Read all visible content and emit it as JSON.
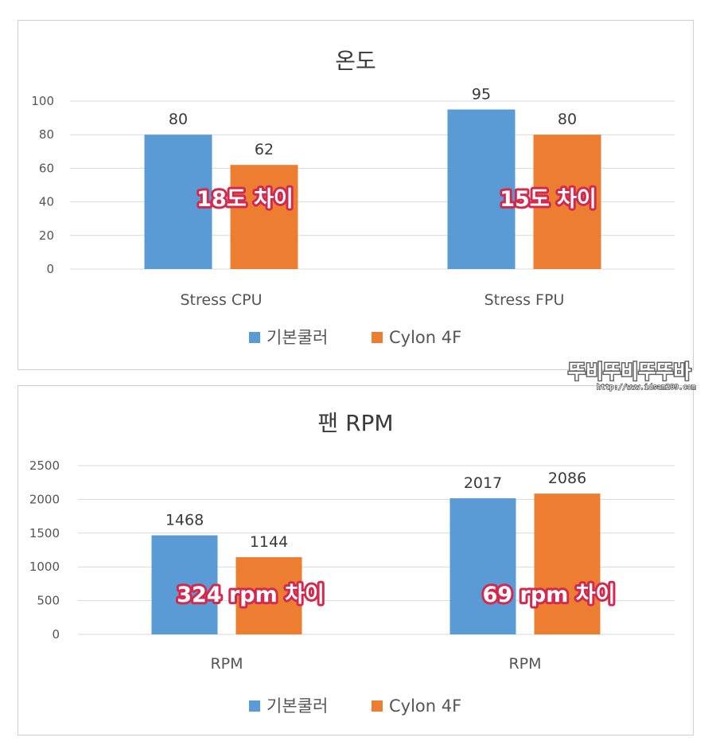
{
  "chart_data": [
    {
      "type": "bar",
      "title": "온도",
      "categories": [
        "Stress CPU",
        "Stress FPU"
      ],
      "series": [
        {
          "name": "기본쿨러",
          "values": [
            80,
            95
          ],
          "color": "#5b9bd5"
        },
        {
          "name": "Cylon 4F",
          "values": [
            62,
            80
          ],
          "color": "#ed7d31"
        }
      ],
      "ylim": [
        0,
        100
      ],
      "yticks": [
        0,
        20,
        40,
        60,
        80,
        100
      ],
      "grid": true,
      "legend": "bottom",
      "annotations": [
        "18도 차이",
        "15도 차이"
      ]
    },
    {
      "type": "bar",
      "title": "팬 RPM",
      "categories": [
        "RPM",
        "RPM"
      ],
      "series": [
        {
          "name": "기본쿨러",
          "values": [
            1468,
            2017
          ],
          "color": "#5b9bd5"
        },
        {
          "name": "Cylon 4F",
          "values": [
            1144,
            2086
          ],
          "color": "#ed7d31"
        }
      ],
      "ylim": [
        0,
        2500
      ],
      "yticks": [
        0,
        500,
        1000,
        1500,
        2000,
        2500
      ],
      "grid": true,
      "legend": "bottom",
      "annotations": [
        "324 rpm 차이",
        "69 rpm 차이"
      ]
    }
  ],
  "watermark": {
    "text": "뚜비뚜비뚜뚜바",
    "url": "http://www.idsam209.com"
  }
}
